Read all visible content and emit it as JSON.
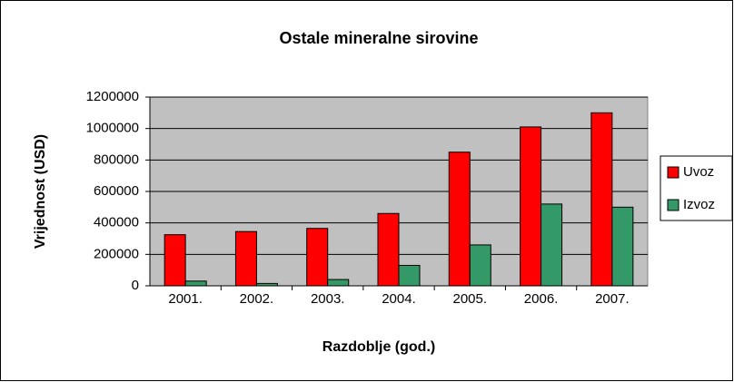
{
  "chart_data": {
    "type": "bar",
    "title": "Ostale mineralne sirovine",
    "x_label": "Razdoblje (god.)",
    "y_label": "Vrijednost (USD)",
    "categories": [
      "2001.",
      "2002.",
      "2003.",
      "2004.",
      "2005.",
      "2006.",
      "2007."
    ],
    "series": [
      {
        "name": "Uvoz",
        "color": "#ff0000",
        "values": [
          325000,
          345000,
          365000,
          460000,
          850000,
          1010000,
          1100000
        ]
      },
      {
        "name": "Izvoz",
        "color": "#339966",
        "values": [
          30000,
          15000,
          40000,
          130000,
          260000,
          520000,
          500000
        ]
      }
    ],
    "ylim": [
      0,
      1200000
    ],
    "yticks": [
      0,
      200000,
      400000,
      600000,
      800000,
      1000000,
      1200000
    ],
    "grid": true,
    "legend": "right"
  }
}
